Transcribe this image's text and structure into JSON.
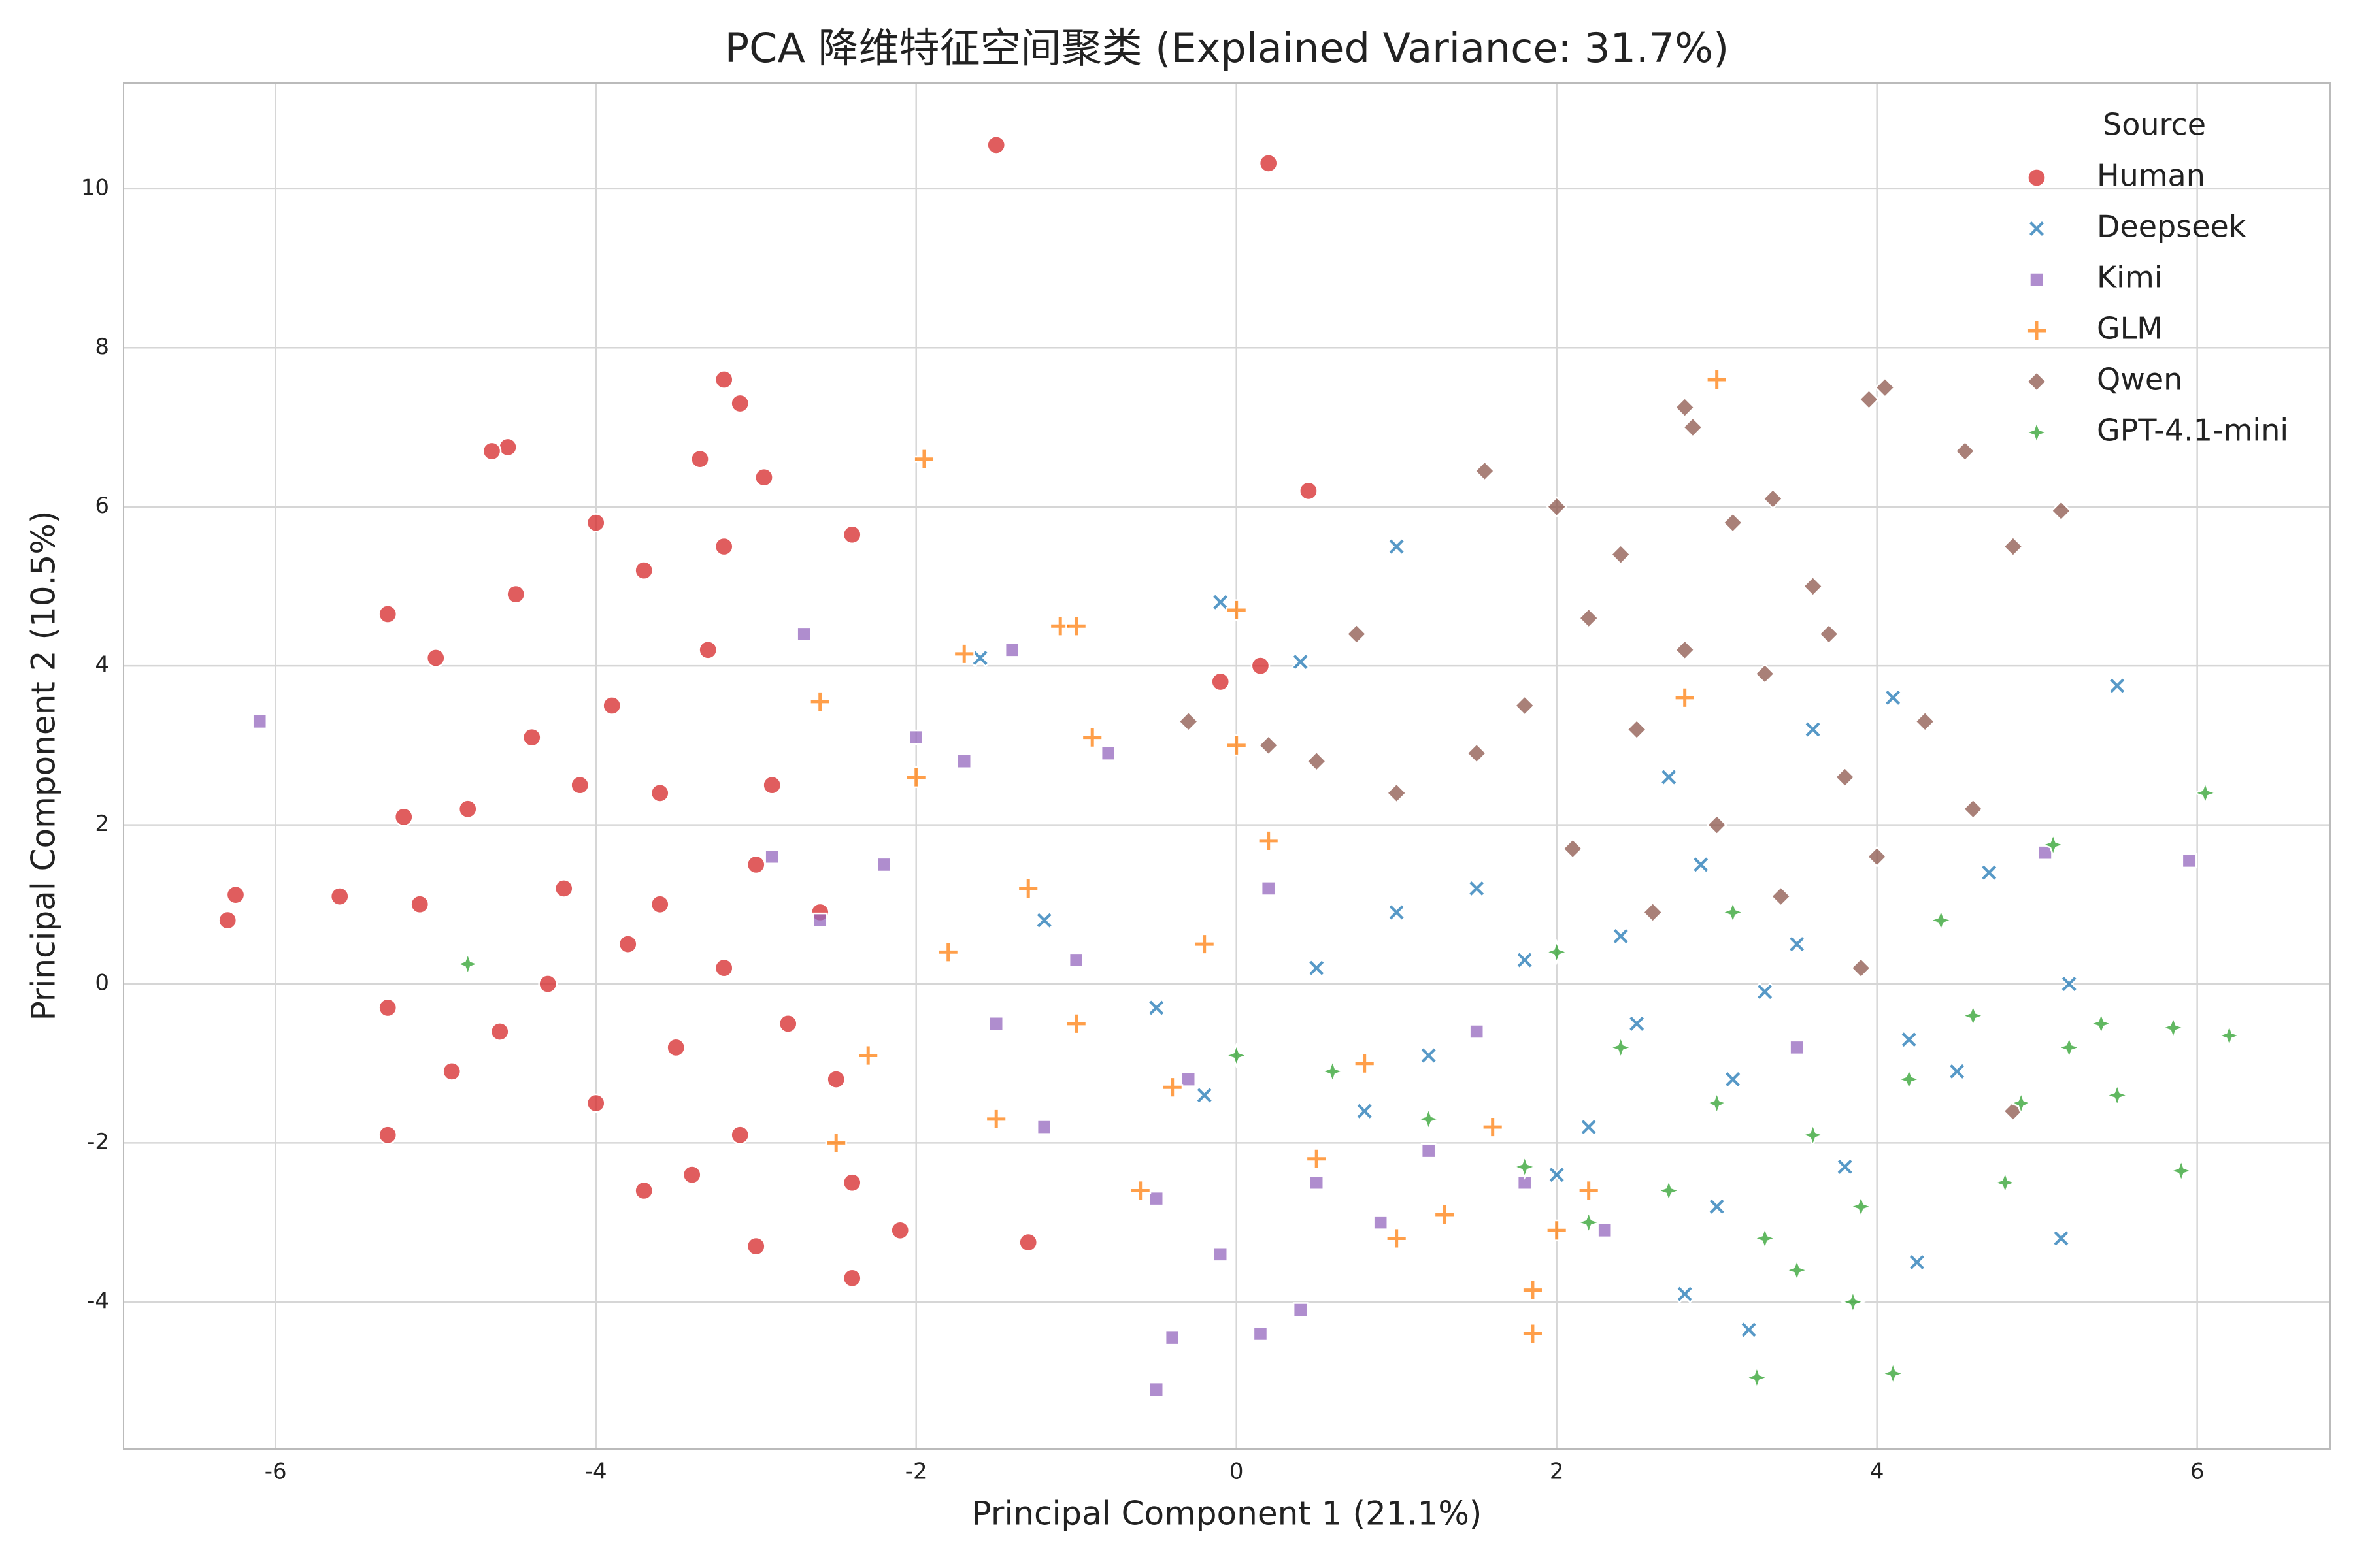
{
  "chart_data": {
    "type": "scatter",
    "title": "PCA 降维特征空间聚类 (Explained Variance: 31.7%)",
    "x_label": "Principal Component 1 (21.1%)",
    "y_label": "Principal Component 2 (10.5%)",
    "xlim": [
      -6.95,
      6.83
    ],
    "ylim": [
      -5.85,
      11.33
    ],
    "xticks": [
      -6,
      -4,
      -2,
      0,
      2,
      4,
      6
    ],
    "yticks": [
      -4,
      -2,
      0,
      2,
      4,
      6,
      8,
      10
    ],
    "grid": true,
    "legend_title": "Source",
    "legend_position": "upper right",
    "series": [
      {
        "name": "Human",
        "color": "#d62728",
        "marker": "circle",
        "x": [
          -1.5,
          0.2,
          0.45,
          -3.2,
          -4.55,
          -4.65,
          -3.1,
          -2.95,
          -3.35,
          -6.3,
          -6.25,
          -5.6,
          -5.3,
          -1.3,
          -2.4,
          -2.1,
          -0.1,
          0.15,
          -2.4,
          -5.3,
          -5.0,
          -3.8,
          -4.2,
          -3.5,
          -4.0,
          -3.2,
          -3.6,
          -4.4,
          -3.0,
          -2.8,
          -4.6,
          -3.4,
          -3.7,
          -4.1,
          -3.3,
          -3.9,
          -4.8,
          -5.1,
          -5.3,
          -4.9,
          -3.1,
          -2.6,
          -2.5,
          -2.9,
          -4.3,
          -3.6,
          -3.0,
          -2.4,
          -4.0,
          -3.7,
          -3.2,
          -5.2,
          -4.5
        ],
        "values": [
          10.55,
          10.32,
          6.2,
          7.6,
          6.75,
          6.7,
          7.3,
          6.37,
          6.6,
          0.8,
          1.12,
          1.1,
          -1.9,
          -3.25,
          -3.7,
          -3.1,
          3.8,
          4.0,
          5.65,
          4.65,
          4.1,
          0.5,
          1.2,
          -0.8,
          -1.5,
          0.2,
          2.4,
          3.1,
          1.5,
          -0.5,
          -0.6,
          -2.4,
          -2.6,
          2.5,
          4.2,
          3.5,
          2.2,
          1.0,
          -0.3,
          -1.1,
          -1.9,
          0.9,
          -1.2,
          2.5,
          0.0,
          1.0,
          -3.3,
          -2.5,
          5.8,
          5.2,
          5.5,
          2.1,
          4.9
        ]
      },
      {
        "name": "Deepseek",
        "color": "#1f77b4",
        "marker": "x",
        "x": [
          5.5,
          1.0,
          -0.1,
          0.4,
          -1.6,
          5.15,
          3.2,
          2.8,
          4.25,
          5.2,
          4.1,
          2.5,
          3.1,
          1.8,
          2.2,
          3.5,
          1.2,
          0.5,
          -0.5,
          2.9,
          3.8,
          1.5,
          4.2,
          2.0,
          0.8,
          3.3,
          -1.2,
          2.7,
          4.5,
          1.0,
          3.0,
          -0.2,
          2.4,
          3.6,
          4.7
        ],
        "values": [
          3.75,
          5.5,
          4.8,
          4.05,
          4.1,
          -3.2,
          -4.35,
          -3.9,
          -3.5,
          0.0,
          3.6,
          -0.5,
          -1.2,
          0.3,
          -1.8,
          0.5,
          -0.9,
          0.2,
          -0.3,
          1.5,
          -2.3,
          1.2,
          -0.7,
          -2.4,
          -1.6,
          -0.1,
          0.8,
          2.6,
          -1.1,
          0.9,
          -2.8,
          -1.4,
          0.6,
          3.2,
          1.4
        ]
      },
      {
        "name": "Kimi",
        "color": "#9467bd",
        "marker": "square",
        "x": [
          -6.1,
          5.95,
          -0.5,
          -0.4,
          0.15,
          0.4,
          -2.7,
          -1.4,
          5.05,
          -1.0,
          -2.2,
          -1.5,
          -0.3,
          0.5,
          -2.0,
          -1.7,
          -0.8,
          1.2,
          -2.6,
          -0.1,
          0.9,
          -1.2,
          1.5,
          2.3,
          -2.9,
          0.2,
          -0.5,
          1.8,
          3.5
        ],
        "values": [
          3.3,
          1.55,
          -5.1,
          -4.45,
          -4.4,
          -4.1,
          4.4,
          4.2,
          1.65,
          0.3,
          1.5,
          -0.5,
          -1.2,
          -2.5,
          3.1,
          2.8,
          2.9,
          -2.1,
          0.8,
          -3.4,
          -3.0,
          -1.8,
          -0.6,
          -3.1,
          1.6,
          1.2,
          -2.7,
          -2.5,
          -0.8
        ]
      },
      {
        "name": "GLM",
        "color": "#ff7f0e",
        "marker": "plus",
        "x": [
          3.0,
          -1.95,
          -1.1,
          -1.0,
          0.0,
          1.85,
          1.85,
          -2.6,
          -1.7,
          -1.0,
          -1.8,
          -0.4,
          -2.3,
          0.5,
          -1.3,
          -0.6,
          1.0,
          0.2,
          -2.0,
          -1.5,
          1.6,
          2.2,
          -0.9,
          0.0,
          -2.5,
          1.3,
          2.8,
          0.8,
          -0.2,
          2.0
        ],
        "values": [
          7.6,
          6.6,
          4.5,
          4.5,
          4.7,
          -4.4,
          -3.85,
          3.55,
          4.15,
          -0.5,
          0.4,
          -1.3,
          -0.9,
          -2.2,
          1.2,
          -2.6,
          -3.2,
          1.8,
          2.6,
          -1.7,
          -1.8,
          -2.6,
          3.1,
          3.0,
          -2.0,
          -2.9,
          3.6,
          -1.0,
          0.5,
          -3.1
        ]
      },
      {
        "name": "Qwen",
        "color": "#8c564b",
        "marker": "diamond",
        "x": [
          4.05,
          3.95,
          2.8,
          2.85,
          5.15,
          4.55,
          4.85,
          1.55,
          2.0,
          3.35,
          0.75,
          -0.3,
          4.85,
          3.0,
          2.5,
          3.4,
          2.1,
          3.8,
          1.5,
          2.8,
          3.3,
          4.0,
          1.0,
          0.5,
          2.2,
          3.6,
          4.3,
          2.6,
          3.9,
          1.8,
          0.2,
          4.6,
          3.1,
          2.4,
          3.7
        ],
        "values": [
          7.5,
          7.35,
          7.25,
          7.0,
          5.95,
          6.7,
          5.5,
          6.45,
          6.0,
          6.1,
          4.4,
          3.3,
          -1.6,
          2.0,
          3.2,
          1.1,
          1.7,
          2.6,
          2.9,
          4.2,
          3.9,
          1.6,
          2.4,
          2.8,
          4.6,
          5.0,
          3.3,
          0.9,
          0.2,
          3.5,
          3.0,
          2.2,
          5.8,
          5.4,
          4.4
        ]
      },
      {
        "name": "GPT-4.1-mini",
        "color": "#2ca02c",
        "marker": "star",
        "x": [
          6.2,
          6.05,
          5.9,
          5.85,
          3.25,
          4.1,
          3.85,
          5.4,
          5.1,
          -4.8,
          3.0,
          2.4,
          3.6,
          4.2,
          1.8,
          4.6,
          3.3,
          2.7,
          4.9,
          3.9,
          1.2,
          0.6,
          2.0,
          4.4,
          5.2,
          3.1,
          5.5,
          4.8,
          3.5,
          2.2,
          0.0
        ],
        "values": [
          -0.65,
          2.4,
          -2.35,
          -0.55,
          -4.95,
          -4.9,
          -4.0,
          -0.5,
          1.75,
          0.25,
          -1.5,
          -0.8,
          -1.9,
          -1.2,
          -2.3,
          -0.4,
          -3.2,
          -2.6,
          -1.5,
          -2.8,
          -1.7,
          -1.1,
          0.4,
          0.8,
          -0.8,
          0.9,
          -1.4,
          -2.5,
          -3.6,
          -3.0,
          -0.9
        ]
      }
    ]
  }
}
